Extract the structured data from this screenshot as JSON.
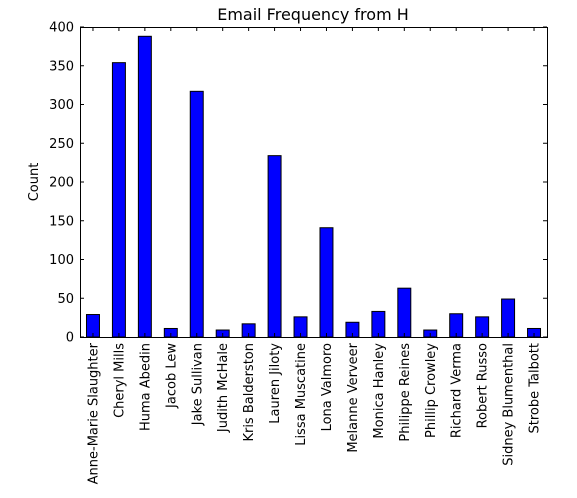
{
  "chart_data": {
    "type": "bar",
    "title": "Email Frequency from H",
    "xlabel": "",
    "ylabel": "Count",
    "ylim": [
      0,
      400
    ],
    "yticks": [
      0,
      50,
      100,
      150,
      200,
      250,
      300,
      350,
      400
    ],
    "grid": false,
    "legend": "none",
    "bar_color": "#0000ff",
    "categories": [
      "Anne-Marie Slaughter",
      "Cheryl Mills",
      "Huma Abedin",
      "Jacob Lew",
      "Jake Sullivan",
      "Judith McHale",
      "Kris Balderston",
      "Lauren Jiloty",
      "Lissa Muscatine",
      "Lona Valmoro",
      "Melanne Verveer",
      "Monica Hanley",
      "Philippe Reines",
      "Phillip Crowley",
      "Richard Verma",
      "Robert Russo",
      "Sidney Blumenthal",
      "Strobe Talbott"
    ],
    "values": [
      29,
      354,
      388,
      11,
      317,
      9,
      17,
      234,
      26,
      141,
      19,
      33,
      63,
      9,
      30,
      26,
      49,
      11
    ]
  }
}
